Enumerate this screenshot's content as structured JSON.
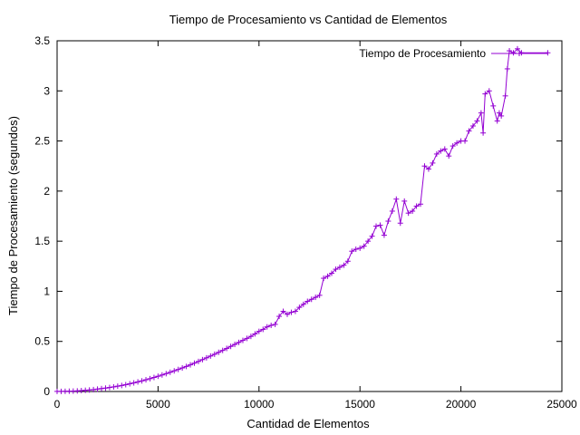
{
  "chart_data": {
    "type": "line",
    "title": "Tiempo de Procesamiento vs Cantidad de Elementos",
    "xlabel": "Cantidad de Elementos",
    "ylabel": "Tiempo de Procesamiento (segundos)",
    "xlim": [
      0,
      25000
    ],
    "ylim": [
      0,
      3.5
    ],
    "xticks": [
      0,
      5000,
      10000,
      15000,
      20000,
      25000
    ],
    "yticks": [
      0,
      0.5,
      1,
      1.5,
      2,
      2.5,
      3,
      3.5
    ],
    "xtick_labels": [
      "0",
      "5000",
      "10000",
      "15000",
      "20000",
      "25000"
    ],
    "ytick_labels": [
      "0",
      "0.5",
      "1",
      "1.5",
      "2",
      "2.5",
      "3",
      "3.5"
    ],
    "grid": false,
    "legend": "top-right",
    "colors": {
      "series": "#9400d3",
      "axis": "#000000"
    },
    "series": [
      {
        "name": "Tiempo de Procesamiento",
        "marker": "plus",
        "x": [
          0,
          200,
          400,
          600,
          800,
          1000,
          1200,
          1400,
          1600,
          1800,
          2000,
          2200,
          2400,
          2600,
          2800,
          3000,
          3200,
          3400,
          3600,
          3800,
          4000,
          4200,
          4400,
          4600,
          4800,
          5000,
          5200,
          5400,
          5600,
          5800,
          6000,
          6200,
          6400,
          6600,
          6800,
          7000,
          7200,
          7400,
          7600,
          7800,
          8000,
          8200,
          8400,
          8600,
          8800,
          9000,
          9200,
          9400,
          9600,
          9800,
          10000,
          10200,
          10400,
          10600,
          10800,
          11000,
          11200,
          11400,
          11600,
          11800,
          12000,
          12200,
          12400,
          12600,
          12800,
          13000,
          13200,
          13400,
          13600,
          13800,
          14000,
          14200,
          14400,
          14600,
          14800,
          15000,
          15200,
          15400,
          15600,
          15800,
          16000,
          16200,
          16400,
          16600,
          16800,
          17000,
          17200,
          17400,
          17600,
          17800,
          18000,
          18200,
          18400,
          18600,
          18800,
          19000,
          19200,
          19400,
          19600,
          19800,
          20000,
          20200,
          20400,
          20600,
          20800,
          21000,
          21100,
          21200,
          21400,
          21600,
          21800,
          21900,
          22000,
          22200,
          22300,
          22400,
          22600,
          22800,
          23000,
          24300
        ],
        "y": [
          0.001,
          0.001,
          0.002,
          0.003,
          0.004,
          0.006,
          0.009,
          0.012,
          0.015,
          0.019,
          0.024,
          0.029,
          0.034,
          0.04,
          0.046,
          0.053,
          0.06,
          0.068,
          0.077,
          0.086,
          0.096,
          0.106,
          0.117,
          0.128,
          0.14,
          0.152,
          0.165,
          0.178,
          0.192,
          0.206,
          0.22,
          0.235,
          0.25,
          0.266,
          0.283,
          0.3,
          0.318,
          0.336,
          0.354,
          0.372,
          0.391,
          0.41,
          0.43,
          0.45,
          0.47,
          0.49,
          0.51,
          0.53,
          0.55,
          0.575,
          0.6,
          0.62,
          0.645,
          0.66,
          0.67,
          0.75,
          0.8,
          0.77,
          0.79,
          0.8,
          0.84,
          0.87,
          0.9,
          0.92,
          0.94,
          0.96,
          1.13,
          1.15,
          1.18,
          1.22,
          1.24,
          1.26,
          1.3,
          1.4,
          1.42,
          1.43,
          1.45,
          1.5,
          1.55,
          1.65,
          1.66,
          1.56,
          1.7,
          1.8,
          1.92,
          1.68,
          1.9,
          1.78,
          1.8,
          1.85,
          1.87,
          2.25,
          2.22,
          2.28,
          2.37,
          2.4,
          2.42,
          2.35,
          2.45,
          2.48,
          2.5,
          2.5,
          2.6,
          2.65,
          2.7,
          2.78,
          2.58,
          2.97,
          3.0,
          2.85,
          2.7,
          2.78,
          2.75,
          2.95,
          3.22,
          3.4,
          3.38,
          3.42,
          3.38,
          3.38
        ]
      }
    ]
  }
}
